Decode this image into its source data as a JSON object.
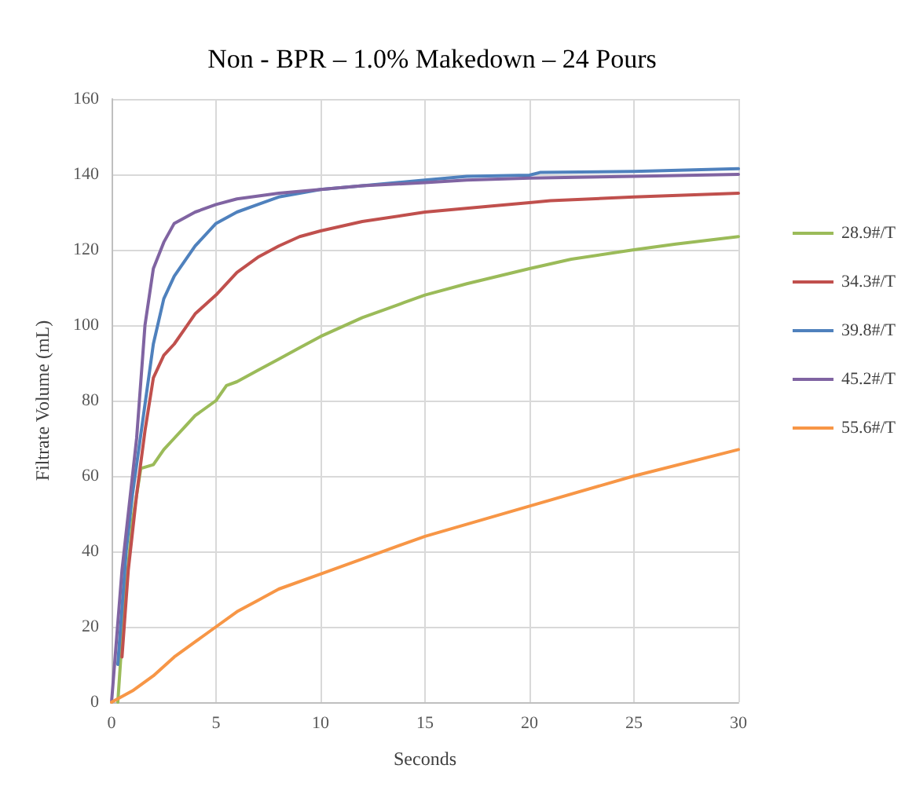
{
  "chart_data": {
    "type": "line",
    "title": "Non - BPR – 1.0% Makedown – 24 Pours",
    "xlabel": "Seconds",
    "ylabel": "Filtrate Volume (mL)",
    "xlim": [
      0,
      30
    ],
    "xticks": [
      0,
      5,
      10,
      15,
      20,
      25,
      30
    ],
    "ylim": [
      0,
      160
    ],
    "yticks": [
      0,
      20,
      40,
      60,
      80,
      100,
      120,
      140,
      160
    ],
    "grid": true,
    "legend": "right",
    "marker": "none",
    "line_style": "solid",
    "series": [
      {
        "name": "28.9#/T",
        "color": "#9bbb59",
        "x": [
          0.3,
          0.6,
          1,
          1.4,
          2,
          2.5,
          3,
          3.5,
          4,
          5,
          5.5,
          6,
          7,
          8,
          9,
          10,
          11,
          12,
          13,
          14,
          15,
          17,
          20,
          22,
          25,
          27,
          30
        ],
        "values": [
          0,
          25,
          48,
          62,
          63,
          67,
          70,
          73,
          76,
          80,
          84,
          85,
          88,
          91,
          94,
          97,
          99.5,
          102,
          104,
          106,
          108,
          111,
          115,
          117.5,
          120,
          121.5,
          123.5
        ]
      },
      {
        "name": "34.3#/T",
        "color": "#c0504d",
        "x": [
          0.5,
          0.8,
          1.2,
          1.6,
          2,
          2.5,
          3,
          3.5,
          4,
          5,
          6,
          7,
          8,
          9,
          10,
          12,
          15,
          18,
          20,
          21,
          25,
          30
        ],
        "values": [
          12,
          35,
          55,
          72,
          86,
          92,
          95,
          99,
          103,
          108,
          114,
          118,
          121,
          123.5,
          125,
          127.5,
          130,
          131.5,
          132.5,
          133,
          134,
          135
        ]
      },
      {
        "name": "39.8#/T",
        "color": "#4f81bd",
        "x": [
          0.3,
          0.7,
          1,
          1.5,
          2,
          2.5,
          3,
          4,
          5,
          6,
          7,
          8,
          10,
          12,
          15,
          17,
          20,
          20.5,
          25,
          30
        ],
        "values": [
          10,
          40,
          55,
          75,
          95,
          107,
          113,
          121,
          127,
          130,
          132,
          134,
          136,
          137,
          138.5,
          139.5,
          139.8,
          140.5,
          140.8,
          141.5
        ]
      },
      {
        "name": "45.2#/T",
        "color": "#8064a2",
        "x": [
          0,
          0.5,
          0.8,
          1.2,
          1.6,
          2,
          2.5,
          3,
          4,
          5,
          6,
          8,
          10,
          12,
          15,
          17,
          20,
          25,
          30
        ],
        "values": [
          0,
          35,
          50,
          70,
          100,
          115,
          122,
          127,
          130,
          132,
          133.5,
          135,
          136,
          137,
          137.8,
          138.5,
          139,
          139.5,
          140
        ]
      },
      {
        "name": "55.6#/T",
        "color": "#f79646",
        "x": [
          0,
          1,
          2,
          3,
          4,
          5,
          6,
          7,
          8,
          10,
          12,
          15,
          20,
          25,
          30
        ],
        "values": [
          0,
          3,
          7,
          12,
          16,
          20,
          24,
          27,
          30,
          34,
          38,
          44,
          52,
          60,
          67
        ]
      }
    ]
  }
}
